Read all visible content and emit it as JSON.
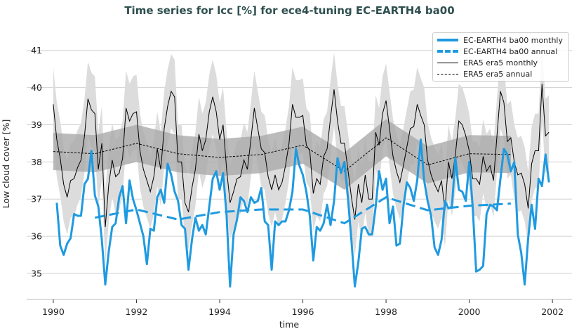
{
  "chart_data": {
    "type": "line",
    "title": "Time series for lcc [%] for ece4-tuning EC-EARTH4 ba00",
    "xlabel": "time",
    "ylabel": "Low cloud cover [%]",
    "xlim": [
      1989.36,
      2002.47
    ],
    "ylim": [
      34.3,
      41.6
    ],
    "x_ticks": [
      "1990",
      "1992",
      "1994",
      "1996",
      "1998",
      "2000",
      "2002"
    ],
    "y_ticks": [
      "35",
      "36",
      "37",
      "38",
      "39",
      "40",
      "41"
    ],
    "grid": "horizontal",
    "legend_position": "top-right",
    "colors": {
      "model": "#1f9ae0",
      "obs": "#000000",
      "band_light": "#dcdcdc",
      "band_dark": "#aaaaaa"
    },
    "legend": [
      "EC-EARTH4 ba00 monthly",
      "EC-EARTH4 ba00 annual",
      "ERA5 era5 monthly",
      "ERA5 era5 annual"
    ],
    "era5_monthly": {
      "start": "1990-01",
      "frequency": "monthly",
      "values": [
        39.55,
        38.6,
        38.1,
        37.4,
        37.05,
        37.5,
        37.55,
        37.85,
        38.05,
        38.7,
        39.7,
        39.4,
        39.3,
        37.8,
        38.5,
        36.25,
        37.4,
        38.05,
        37.6,
        37.7,
        38.1,
        39.45,
        39.1,
        39.3,
        39.35,
        38.3,
        37.8,
        37.5,
        37.2,
        37.6,
        38.35,
        37.8,
        38.9,
        39.5,
        39.9,
        39.75,
        38.0,
        38.0,
        36.9,
        36.65,
        37.3,
        37.8,
        38.75,
        38.3,
        38.6,
        39.35,
        39.75,
        39.35,
        38.6,
        39.0,
        37.8,
        36.9,
        37.2,
        37.55,
        37.6,
        38.05,
        37.8,
        38.6,
        39.45,
        38.9,
        38.35,
        38.25,
        37.6,
        37.25,
        37.65,
        37.25,
        37.45,
        37.9,
        38.5,
        39.55,
        39.2,
        39.2,
        39.25,
        38.45,
        38.3,
        37.15,
        37.55,
        37.4,
        38.15,
        38.35,
        39.2,
        39.95,
        39.1,
        38.5,
        38.5,
        37.8,
        37.05,
        36.45,
        37.4,
        36.9,
        37.65,
        37.0,
        37.0,
        38.8,
        38.45,
        39.3,
        39.65,
        38.9,
        38.15,
        37.75,
        37.45,
        37.9,
        38.4,
        38.9,
        38.95,
        39.55,
        39.25,
        39.0,
        38.05,
        37.65,
        37.4,
        37.2,
        37.5,
        36.7,
        38.0,
        37.55,
        38.2,
        39.1,
        39.0,
        38.7,
        38.3,
        37.55,
        37.55,
        37.4,
        38.15,
        37.75,
        37.9,
        37.5,
        38.7,
        39.9,
        39.6,
        38.55,
        38.65,
        38.0,
        37.65,
        37.7,
        37.4,
        36.75,
        37.95,
        38.3,
        38.3,
        40.1,
        38.7,
        38.8
      ],
      "spread_halfwidth": 1.0
    },
    "era5_annual": {
      "years": [
        1990,
        1991,
        1992,
        1993,
        1994,
        1995,
        1996,
        1997,
        1998,
        1999,
        2000,
        2001
      ],
      "values": [
        38.28,
        38.22,
        38.5,
        38.22,
        38.12,
        38.2,
        38.45,
        37.75,
        38.65,
        37.92,
        38.22,
        38.2
      ],
      "spread_halfwidth": 0.5
    },
    "ecearth_monthly": {
      "start": "1990-02",
      "frequency": "monthly",
      "values": [
        36.9,
        35.75,
        35.5,
        35.8,
        35.95,
        36.6,
        36.55,
        36.55,
        37.4,
        37.55,
        38.3,
        37.1,
        36.8,
        35.9,
        34.7,
        35.6,
        36.25,
        36.35,
        37.05,
        37.35,
        36.35,
        37.5,
        37.0,
        36.7,
        36.35,
        36.0,
        35.25,
        36.2,
        36.15,
        37.05,
        37.25,
        36.9,
        37.95,
        37.65,
        37.2,
        36.95,
        36.3,
        36.2,
        35.1,
        35.9,
        36.5,
        36.15,
        36.3,
        36.05,
        36.8,
        37.55,
        37.75,
        37.25,
        37.7,
        36.55,
        34.65,
        36.05,
        36.45,
        37.05,
        36.95,
        36.65,
        37.05,
        36.9,
        36.95,
        37.3,
        36.4,
        36.3,
        35.1,
        36.4,
        36.3,
        36.4,
        36.4,
        36.7,
        37.2,
        38.35,
        37.9,
        37.65,
        37.2,
        36.55,
        35.35,
        36.25,
        36.15,
        36.35,
        36.85,
        36.3,
        36.95,
        38.1,
        37.7,
        38.0,
        37.05,
        35.9,
        34.65,
        35.3,
        36.2,
        36.25,
        36.05,
        36.05,
        36.8,
        37.75,
        37.25,
        37.55,
        36.35,
        36.8,
        35.75,
        35.8,
        36.8,
        37.45,
        37.3,
        36.95,
        37.5,
        38.6,
        37.5,
        36.95,
        36.55,
        35.7,
        35.5,
        35.9,
        36.95,
        36.75,
        36.8,
        38.1,
        37.25,
        37.2,
        36.95,
        38.0,
        36.8,
        35.05,
        35.1,
        35.2,
        36.6,
        36.85,
        36.8,
        36.7,
        37.55,
        38.35,
        38.2,
        37.75,
        38.0,
        36.05,
        35.55,
        34.7,
        35.95,
        36.85,
        36.2,
        37.55,
        37.35,
        38.2,
        37.45
      ]
    },
    "ecearth_annual": {
      "years": [
        1991,
        1992,
        1993,
        1994,
        1995,
        1996,
        1997,
        1998,
        1999,
        2000,
        2001
      ],
      "values": [
        36.5,
        36.72,
        36.45,
        36.65,
        36.72,
        36.72,
        36.35,
        37.05,
        36.7,
        36.82,
        36.88
      ]
    }
  }
}
